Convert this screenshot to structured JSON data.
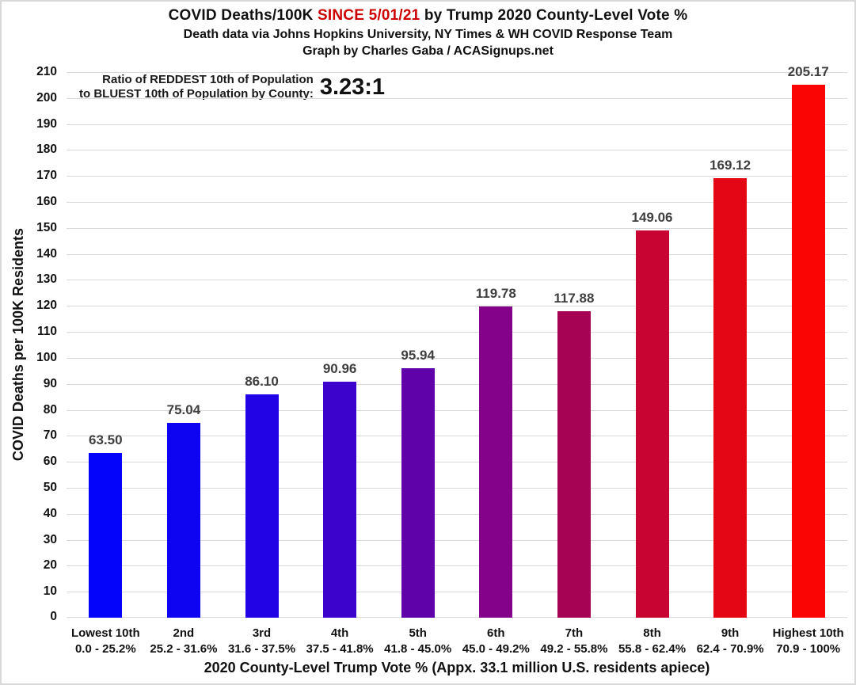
{
  "header": {
    "title_part1": "COVID Deaths/100K ",
    "title_highlight": "SINCE 5/01/21",
    "title_part2": " by Trump 2020 County-Level Vote %",
    "highlight_color": "#CC0000",
    "subtitle": "Death data via Johns Hopkins University, NY Times & WH COVID Response Team",
    "credit": "Graph by Charles Gaba / ACASignups.net"
  },
  "annotation": {
    "line1": "Ratio of REDDEST 10th of Population",
    "line2": "to BLUEST 10th of Population by County:",
    "ratio": "3.23:1"
  },
  "chart_data": {
    "type": "bar",
    "title": "COVID Deaths/100K SINCE 5/01/21 by Trump 2020 County-Level Vote %",
    "categories": [
      "Lowest 10th",
      "2nd",
      "3rd",
      "4th",
      "5th",
      "6th",
      "7th",
      "8th",
      "9th",
      "Highest 10th"
    ],
    "category_ranges": [
      "0.0 - 25.2%",
      "25.2 - 31.6%",
      "31.6 - 37.5%",
      "37.5 - 41.8%",
      "41.8 - 45.0%",
      "45.0 - 49.2%",
      "49.2 - 55.8%",
      "55.8 - 62.4%",
      "62.4 - 70.9%",
      "70.9 - 100%"
    ],
    "values": [
      63.5,
      75.04,
      86.1,
      90.96,
      95.94,
      119.78,
      117.88,
      149.06,
      169.12,
      205.17
    ],
    "bar_colors": [
      "#0404FB",
      "#0E04F2",
      "#2103E6",
      "#3B03CC",
      "#5F02A9",
      "#840189",
      "#A70354",
      "#C80433",
      "#E40515",
      "#FB0404"
    ],
    "xlabel": "2020 County-Level Trump Vote % (Appx. 33.1 million U.S. residents apiece)",
    "ylabel": "COVID Deaths per 100K Residents",
    "ylim": [
      0,
      210
    ],
    "ytick_step": 10,
    "grid": "horizontal",
    "gridline_color": "#d9d9d9",
    "value_label_color": "#3f3f3f",
    "legend": "none"
  }
}
